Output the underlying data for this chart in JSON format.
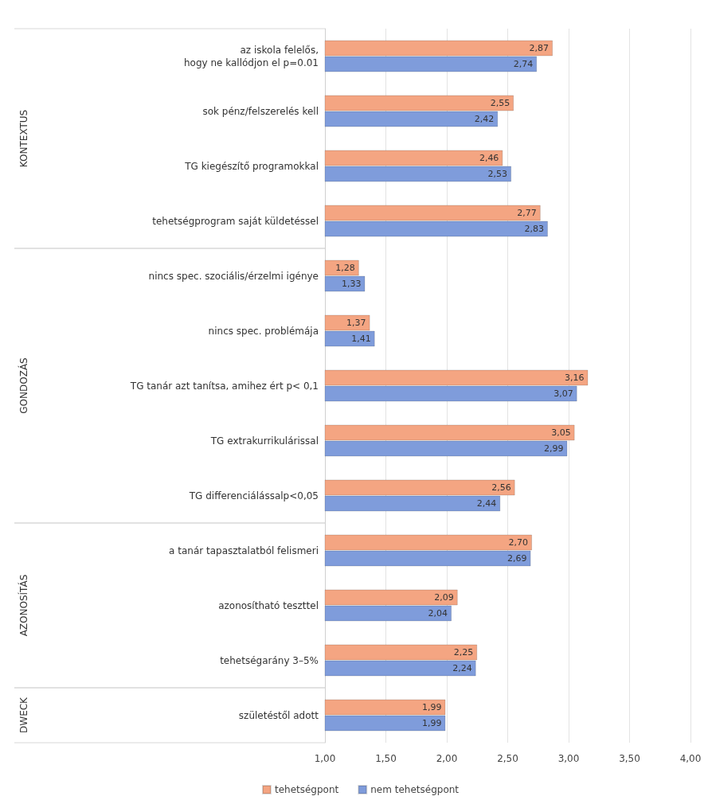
{
  "chart_data": {
    "type": "bar",
    "orientation": "horizontal",
    "categories": [
      "az iskola felelős,\nhogy ne kallódjon el p=0.01",
      "sok pénz/felszerelés kell",
      "TG kiegészítő programokkal",
      "tehetségprogram saját küldetéssel",
      "nincs spec. szociális/érzelmi igénye",
      "nincs spec. problémája",
      "TG tanár azt tanítsa, amihez ért p< 0,1",
      "TG extrakurrikulárissal",
      "TG differenciálássalp<0,05",
      "a tanár tapasztalatból felismeri",
      "azonosítható teszttel",
      "tehetségarány 3–5%",
      "születéstől adott"
    ],
    "series": [
      {
        "name": "tehetségpont",
        "color": "#f4a582",
        "values": [
          2.87,
          2.55,
          2.46,
          2.77,
          1.28,
          1.37,
          3.16,
          3.05,
          2.56,
          2.7,
          2.09,
          2.25,
          1.99
        ],
        "value_labels": [
          "2,87",
          "2,55",
          "2,46",
          "2,77",
          "1,28",
          "1,37",
          "3,16",
          "3,05",
          "2,56",
          "2,70",
          "2,09",
          "2,25",
          "1,99"
        ]
      },
      {
        "name": "nem tehetségpont",
        "color": "#7f9cdb",
        "values": [
          2.74,
          2.42,
          2.53,
          2.83,
          1.33,
          1.41,
          3.07,
          2.99,
          2.44,
          2.69,
          2.04,
          2.24,
          1.99
        ],
        "value_labels": [
          "2,74",
          "2,42",
          "2,53",
          "2,83",
          "1,33",
          "1,41",
          "3,07",
          "2,99",
          "2,44",
          "2,69",
          "2,04",
          "2,24",
          "1,99"
        ]
      }
    ],
    "xlim": [
      1,
      4
    ],
    "xticks": [
      {
        "value": 1,
        "label": "1,00"
      },
      {
        "value": 1.5,
        "label": "1,50"
      },
      {
        "value": 2,
        "label": "2,00"
      },
      {
        "value": 2.5,
        "label": "2,50"
      },
      {
        "value": 3,
        "label": "3,00"
      },
      {
        "value": 3.5,
        "label": "3,50"
      },
      {
        "value": 4,
        "label": "4,00"
      }
    ],
    "annotations": [
      "KONTEXTUS",
      "GONDOZÁS",
      "AZONOSÍTÁS",
      "DWECK"
    ],
    "grid": "x",
    "legend": "bottom"
  }
}
